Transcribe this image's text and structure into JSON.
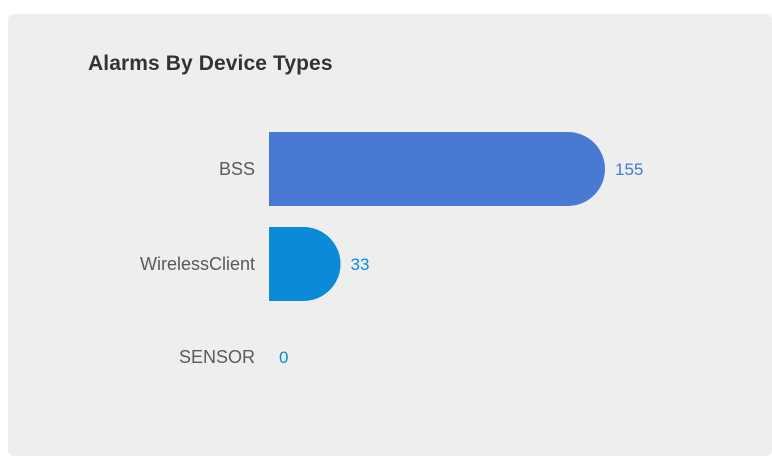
{
  "widget": {
    "title": "Alarms By Device Types"
  },
  "chart_data": {
    "type": "bar",
    "orientation": "horizontal",
    "title": "Alarms By Device Types",
    "categories": [
      "BSS",
      "WirelessClient",
      "SENSOR"
    ],
    "values": [
      155,
      33,
      0
    ],
    "value_labels": [
      "155",
      "33",
      "0"
    ],
    "bar_colors": [
      "#4a79d3",
      "#0b8ad8",
      "#0b8ad8"
    ],
    "label_colors": [
      "#4a79d3",
      "#0b8ad8",
      "#0b8ad8"
    ],
    "xlim": [
      0,
      155
    ],
    "grid": false,
    "legend": "none",
    "data_labels": "outside-end"
  }
}
